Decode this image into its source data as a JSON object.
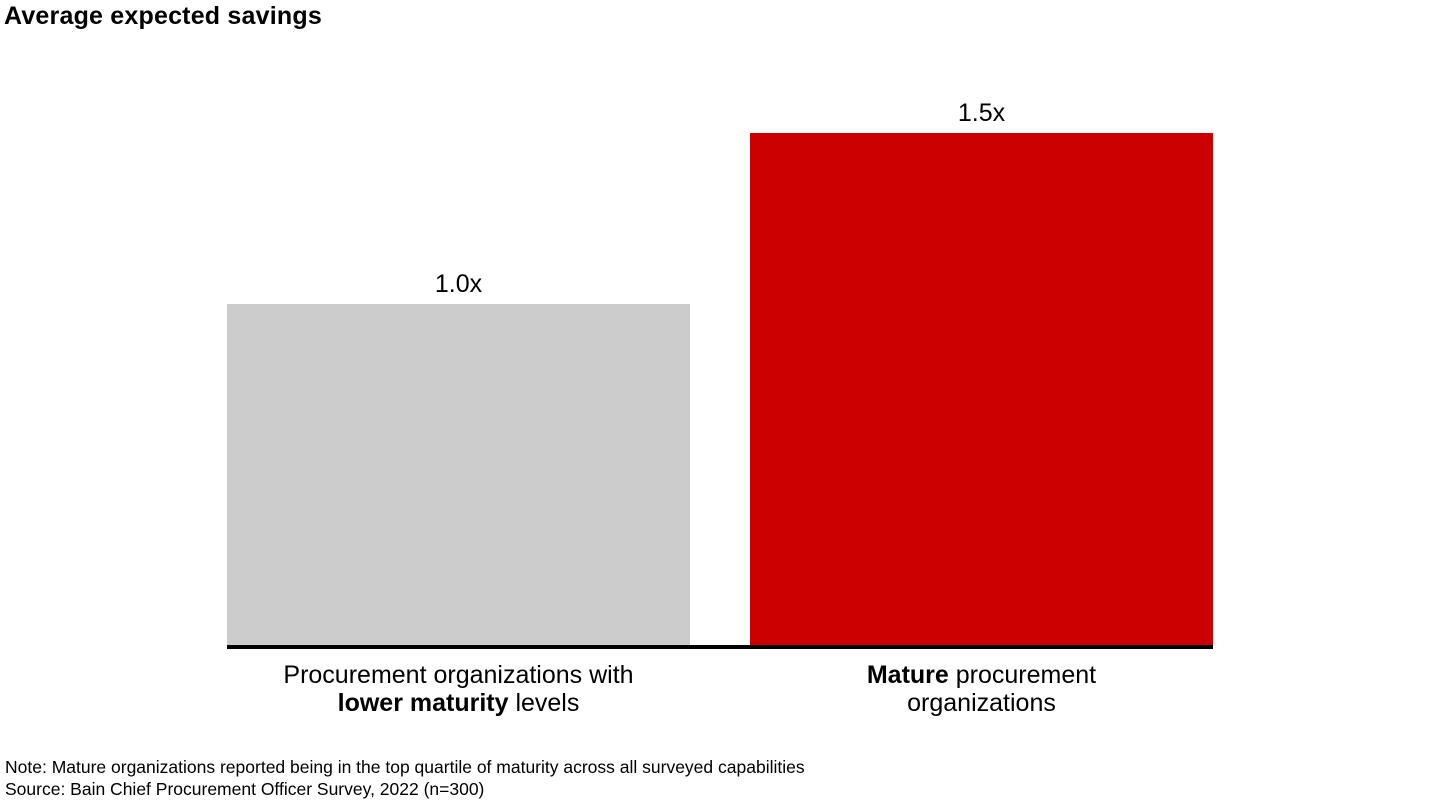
{
  "page": {
    "background": "#ffffff"
  },
  "chart_data": {
    "type": "bar",
    "title": "Average expected savings",
    "categories": [
      "Procurement organizations with lower maturity levels",
      "Mature procurement organizations"
    ],
    "category_lines": [
      {
        "line1": "Procurement organizations with",
        "line2_bold": "lower maturity",
        "line2_rest": " levels"
      },
      {
        "line1_bold": "Mature",
        "line1_rest": " procurement",
        "line2": "organizations"
      }
    ],
    "values": [
      1.0,
      1.5
    ],
    "value_labels": [
      "1.0x",
      "1.5x"
    ],
    "bar_colors": [
      "#cccccc",
      "#cc0000"
    ],
    "xlabel": "",
    "ylabel": "",
    "ylim": [
      0,
      1.8
    ],
    "grid": false,
    "legend": false,
    "axis": {
      "baseline_color": "#000000",
      "y_axis_visible": false
    }
  },
  "footer": {
    "note": "Note: Mature organizations reported being in the top quartile of maturity across all surveyed capabilities",
    "source": "Source: Bain Chief Procurement Officer Survey, 2022 (n=300)"
  }
}
